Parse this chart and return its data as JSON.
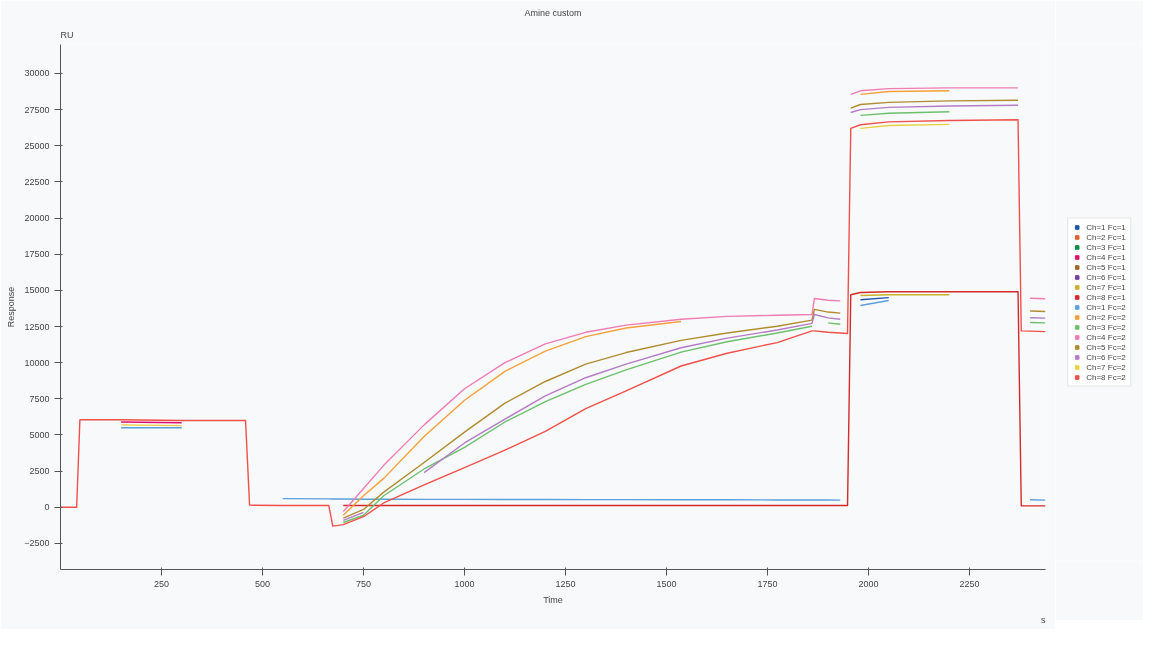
{
  "chart_data": {
    "type": "line",
    "title": "Amine custom",
    "xlabel": "Time",
    "ylabel": "Response",
    "annotations": [
      "RU",
      "s"
    ],
    "x": [
      0,
      40,
      48,
      150,
      300,
      458,
      468,
      550,
      664,
      674,
      700,
      750,
      800,
      900,
      1000,
      1100,
      1200,
      1300,
      1400,
      1536,
      1650,
      1774,
      1860,
      1866,
      1900,
      1930,
      1948,
      1956,
      1980,
      2050,
      2200,
      2370,
      2378,
      2400,
      2438
    ],
    "xlim": [
      0,
      2438
    ],
    "xticks": [
      250,
      500,
      750,
      1000,
      1250,
      1500,
      1750,
      2000,
      2250
    ],
    "ylim": [
      -4300,
      32000
    ],
    "yticks": [
      -2500,
      0,
      2500,
      5000,
      7500,
      10000,
      12500,
      15000,
      17500,
      20000,
      22500,
      25000,
      27500,
      30000
    ],
    "grid": false,
    "legend": "right",
    "line_style": "solid",
    "marker": "none",
    "series": [
      {
        "name": "Ch=1 Fc=1",
        "color": "#1f55a8",
        "values": [
          null,
          null,
          null,
          null,
          null,
          null,
          null,
          null,
          null,
          null,
          null,
          null,
          null,
          null,
          null,
          null,
          null,
          null,
          null,
          null,
          null,
          null,
          null,
          null,
          null,
          null,
          null,
          null,
          14350,
          14500,
          null,
          null,
          null,
          null,
          null
        ]
      },
      {
        "name": "Ch=2 Fc=1",
        "color": "#e0622a",
        "values": [
          null,
          null,
          null,
          null,
          null,
          null,
          null,
          null,
          null,
          null,
          null,
          null,
          null,
          null,
          null,
          null,
          null,
          null,
          null,
          null,
          null,
          null,
          null,
          null,
          null,
          null,
          null,
          null,
          null,
          null,
          null,
          null,
          null,
          null,
          null
        ]
      },
      {
        "name": "Ch=3 Fc=1",
        "color": "#0a8f47",
        "values": [
          null,
          null,
          null,
          null,
          null,
          null,
          null,
          null,
          null,
          null,
          null,
          null,
          null,
          null,
          null,
          null,
          null,
          null,
          null,
          null,
          null,
          null,
          null,
          null,
          null,
          null,
          null,
          null,
          null,
          null,
          null,
          null,
          null,
          null,
          null
        ]
      },
      {
        "name": "Ch=4 Fc=1",
        "color": "#e0116e",
        "values": [
          null,
          null,
          null,
          5900,
          5850,
          null,
          null,
          null,
          null,
          null,
          null,
          null,
          null,
          null,
          null,
          null,
          null,
          null,
          null,
          null,
          null,
          null,
          null,
          null,
          null,
          null,
          null,
          null,
          null,
          null,
          null,
          null,
          null,
          null,
          null
        ]
      },
      {
        "name": "Ch=5 Fc=1",
        "color": "#9a6a2a",
        "values": [
          null,
          null,
          null,
          null,
          null,
          null,
          null,
          null,
          null,
          null,
          null,
          null,
          null,
          null,
          null,
          null,
          null,
          null,
          null,
          null,
          null,
          null,
          null,
          null,
          null,
          null,
          null,
          null,
          null,
          null,
          null,
          null,
          null,
          null,
          null
        ]
      },
      {
        "name": "Ch=6 Fc=1",
        "color": "#7040a0",
        "values": [
          null,
          null,
          null,
          null,
          null,
          null,
          null,
          null,
          null,
          null,
          null,
          null,
          null,
          null,
          null,
          null,
          null,
          null,
          null,
          null,
          null,
          null,
          null,
          null,
          null,
          null,
          null,
          null,
          null,
          null,
          null,
          null,
          null,
          null,
          null
        ]
      },
      {
        "name": "Ch=7 Fc=1",
        "color": "#c8b42c",
        "values": [
          null,
          null,
          null,
          null,
          null,
          null,
          null,
          null,
          null,
          null,
          null,
          null,
          null,
          null,
          null,
          null,
          null,
          null,
          null,
          null,
          null,
          null,
          null,
          null,
          null,
          null,
          null,
          null,
          14650,
          14700,
          14700,
          null,
          null,
          null,
          null
        ]
      },
      {
        "name": "Ch=8 Fc=1",
        "color": "#d42a2a",
        "values": [
          null,
          null,
          null,
          null,
          null,
          null,
          null,
          null,
          null,
          null,
          120,
          120,
          120,
          120,
          120,
          120,
          120,
          120,
          120,
          120,
          120,
          120,
          120,
          120,
          120,
          120,
          120,
          14700,
          14850,
          14900,
          14900,
          14900,
          100,
          100,
          100
        ]
      },
      {
        "name": "Ch=1 Fc=2",
        "color": "#5aa0dc",
        "values": [
          null,
          null,
          null,
          5500,
          5500,
          null,
          null,
          600,
          580,
          570,
          570,
          560,
          560,
          550,
          550,
          540,
          540,
          530,
          530,
          520,
          520,
          510,
          510,
          510,
          510,
          500,
          null,
          null,
          13950,
          14300,
          null,
          null,
          null,
          520,
          500
        ]
      },
      {
        "name": "Ch=2 Fc=2",
        "color": "#f5a03c",
        "values": [
          null,
          null,
          null,
          null,
          null,
          null,
          null,
          null,
          null,
          null,
          -550,
          800,
          2000,
          4900,
          7400,
          9400,
          10800,
          11800,
          12400,
          12850,
          null,
          null,
          null,
          null,
          null,
          null,
          null,
          null,
          28550,
          28750,
          28800,
          null,
          null,
          null,
          null
        ]
      },
      {
        "name": "Ch=3 Fc=2",
        "color": "#6cc06c",
        "values": [
          null,
          null,
          null,
          null,
          null,
          null,
          null,
          null,
          null,
          null,
          -1050,
          -550,
          800,
          2650,
          4150,
          5900,
          7300,
          8500,
          9500,
          10730,
          11450,
          12050,
          12520,
          null,
          12750,
          12660,
          null,
          null,
          27100,
          27250,
          27350,
          null,
          null,
          12780,
          12750
        ]
      },
      {
        "name": "Ch=4 Fc=2",
        "color": "#f07cb4",
        "values": [
          null,
          null,
          null,
          null,
          null,
          null,
          null,
          null,
          null,
          null,
          -300,
          1300,
          2900,
          5700,
          8200,
          10000,
          11300,
          12100,
          12600,
          13000,
          13200,
          13280,
          13330,
          14440,
          14320,
          14270,
          null,
          28550,
          28800,
          28950,
          29000,
          29000,
          null,
          14460,
          14420
        ]
      },
      {
        "name": "Ch=5 Fc=2",
        "color": "#b08c30",
        "values": [
          null,
          null,
          null,
          null,
          null,
          null,
          null,
          null,
          null,
          null,
          -750,
          -150,
          1050,
          3100,
          5200,
          7200,
          8700,
          9900,
          10700,
          11540,
          12050,
          12520,
          12940,
          13690,
          13500,
          13430,
          null,
          27600,
          27850,
          28000,
          28100,
          28150,
          null,
          13570,
          13540
        ]
      },
      {
        "name": "Ch=6 Fc=2",
        "color": "#b47cc4",
        "values": [
          null,
          null,
          null,
          null,
          null,
          null,
          null,
          null,
          null,
          null,
          -900,
          -350,
          null,
          2400,
          4450,
          6100,
          7700,
          8960,
          9900,
          11030,
          11700,
          12260,
          12720,
          13330,
          13100,
          13000,
          null,
          27300,
          27500,
          27650,
          27750,
          27800,
          null,
          13110,
          13080
        ]
      },
      {
        "name": "Ch=7 Fc=2",
        "color": "#e8d040",
        "values": [
          null,
          null,
          null,
          5700,
          5650,
          null,
          null,
          null,
          null,
          null,
          null,
          null,
          null,
          null,
          null,
          null,
          null,
          null,
          null,
          null,
          null,
          null,
          null,
          null,
          null,
          null,
          null,
          null,
          26200,
          26400,
          26480,
          null,
          null,
          null,
          null
        ]
      },
      {
        "name": "Ch=8 Fc=2",
        "color": "#f0504a",
        "values": [
          0,
          0,
          6050,
          6050,
          6000,
          6000,
          150,
          130,
          120,
          -1300,
          -1200,
          -650,
          300,
          1550,
          2750,
          3950,
          5250,
          6820,
          8050,
          9770,
          10650,
          11390,
          12200,
          12200,
          12100,
          12050,
          12020,
          26200,
          26450,
          26650,
          26750,
          26800,
          12200,
          12180,
          12150
        ]
      }
    ]
  }
}
